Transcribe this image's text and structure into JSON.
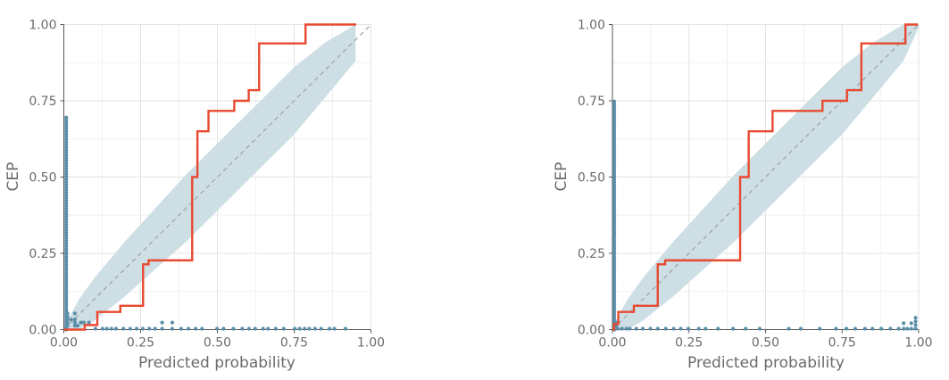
{
  "chart_data": [
    {
      "type": "line",
      "title": "",
      "xlabel": "Predicted probability",
      "ylabel": "CEP",
      "xlim": [
        0,
        1
      ],
      "ylim": [
        0,
        1
      ],
      "xticks": [
        "0.00",
        "0.25",
        "0.50",
        "0.75",
        "1.00"
      ],
      "yticks": [
        "0.00",
        "0.25",
        "0.50",
        "0.75",
        "1.00"
      ],
      "grid": true,
      "colors": {
        "step": "#e8492f",
        "band": "#cddfe5",
        "points": "#5a8ea8",
        "diagonal": "#a0a0a0"
      },
      "cep_step": {
        "x": [
          0,
          0.068,
          0.109,
          0.184,
          0.258,
          0.276,
          0.418,
          0.435,
          0.471,
          0.555,
          0.602,
          0.636,
          0.787,
          0.952
        ],
        "y": [
          0,
          0.015,
          0.058,
          0.078,
          0.214,
          0.227,
          0.5,
          0.65,
          0.717,
          0.75,
          0.785,
          0.938,
          1.0,
          1.0
        ]
      },
      "band": {
        "x": [
          0,
          0.05,
          0.1,
          0.15,
          0.2,
          0.25,
          0.3,
          0.35,
          0.4,
          0.45,
          0.5,
          0.55,
          0.6,
          0.65,
          0.7,
          0.75,
          0.8,
          0.85,
          0.9,
          0.95
        ],
        "lower": [
          0,
          0,
          0.03,
          0.07,
          0.11,
          0.155,
          0.2,
          0.245,
          0.29,
          0.34,
          0.39,
          0.44,
          0.49,
          0.54,
          0.59,
          0.64,
          0.7,
          0.76,
          0.82,
          0.88
        ],
        "upper": [
          0.01,
          0.1,
          0.17,
          0.23,
          0.29,
          0.345,
          0.4,
          0.455,
          0.51,
          0.56,
          0.61,
          0.66,
          0.71,
          0.76,
          0.81,
          0.86,
          0.9,
          0.94,
          0.97,
          1.0
        ]
      },
      "points_column": {
        "x": 0.005,
        "y_max": 0.7
      },
      "points": {
        "x": [
          0.012,
          0.012,
          0.012,
          0.012,
          0.012,
          0.036,
          0.036,
          0.036,
          0.036,
          0.024,
          0.045,
          0.055,
          0.065,
          0.082,
          0.103,
          0.126,
          0.14,
          0.155,
          0.17,
          0.194,
          0.216,
          0.237,
          0.257,
          0.278,
          0.297,
          0.32,
          0.32,
          0.353,
          0.353,
          0.382,
          0.406,
          0.429,
          0.45,
          0.499,
          0.52,
          0.552,
          0.581,
          0.603,
          0.623,
          0.649,
          0.665,
          0.69,
          0.716,
          0.752,
          0.768,
          0.784,
          0.799,
          0.818,
          0.838,
          0.865,
          0.881,
          0.917
        ],
        "y": [
          0.01,
          0.02,
          0.03,
          0.04,
          0.05,
          0.01,
          0.02,
          0.03,
          0.05,
          0.03,
          0.01,
          0.02,
          0.02,
          0.02,
          0.0,
          0.0,
          0.0,
          0.0,
          0.0,
          0.0,
          0.0,
          0.0,
          0.0,
          0.0,
          0.0,
          0.0,
          0.02,
          0.0,
          0.02,
          0.0,
          0.0,
          0.0,
          0.0,
          0.0,
          0.0,
          0.0,
          0.0,
          0.0,
          0.0,
          0.0,
          0.0,
          0.0,
          0.0,
          0.0,
          0.0,
          0.0,
          0.0,
          0.0,
          0.0,
          0.0,
          0.0,
          0.0
        ]
      }
    },
    {
      "type": "line",
      "title": "",
      "xlabel": "Predicted probability",
      "ylabel": "CEP",
      "xlim": [
        0,
        1
      ],
      "ylim": [
        0,
        1
      ],
      "xticks": [
        "0.00",
        "0.25",
        "0.50",
        "0.75",
        "1.00"
      ],
      "yticks": [
        "0.00",
        "0.25",
        "0.50",
        "0.75",
        "1.00"
      ],
      "grid": true,
      "colors": {
        "step": "#e8492f",
        "band": "#cddfe5",
        "points": "#5a8ea8",
        "diagonal": "#a0a0a0"
      },
      "cep_step": {
        "x": [
          0,
          0.005,
          0.019,
          0.07,
          0.148,
          0.172,
          0.417,
          0.445,
          0.523,
          0.686,
          0.766,
          0.813,
          0.957,
          0.998
        ],
        "y": [
          0,
          0.018,
          0.058,
          0.078,
          0.214,
          0.227,
          0.5,
          0.65,
          0.717,
          0.75,
          0.785,
          0.938,
          1.0,
          1.0
        ]
      },
      "band": {
        "x": [
          0,
          0.05,
          0.1,
          0.15,
          0.2,
          0.25,
          0.3,
          0.35,
          0.4,
          0.45,
          0.5,
          0.55,
          0.6,
          0.65,
          0.7,
          0.75,
          0.8,
          0.85,
          0.9,
          0.95,
          1.0
        ],
        "lower": [
          0,
          0,
          0.03,
          0.07,
          0.11,
          0.155,
          0.2,
          0.245,
          0.29,
          0.34,
          0.39,
          0.44,
          0.49,
          0.54,
          0.59,
          0.64,
          0.7,
          0.76,
          0.82,
          0.88,
          0.99
        ],
        "upper": [
          0.01,
          0.1,
          0.17,
          0.23,
          0.29,
          0.345,
          0.4,
          0.455,
          0.51,
          0.56,
          0.61,
          0.66,
          0.71,
          0.76,
          0.81,
          0.86,
          0.9,
          0.94,
          0.97,
          1.0,
          1.0
        ]
      },
      "points_column": {
        "x": 0.003,
        "y_max": 0.75
      },
      "points": {
        "x": [
          0.012,
          0.012,
          0.017,
          0.031,
          0.046,
          0.057,
          0.078,
          0.099,
          0.124,
          0.148,
          0.174,
          0.2,
          0.223,
          0.248,
          0.282,
          0.304,
          0.345,
          0.394,
          0.435,
          0.481,
          0.576,
          0.615,
          0.677,
          0.73,
          0.764,
          0.793,
          0.825,
          0.849,
          0.878,
          0.908,
          0.935,
          0.951,
          0.951,
          0.963,
          0.976,
          0.976,
          0.99,
          0.99,
          0.99,
          0.99
        ],
        "y": [
          0.01,
          0.02,
          0.0,
          0.0,
          0.0,
          0.0,
          0.0,
          0.0,
          0.0,
          0.0,
          0.0,
          0.0,
          0.0,
          0.0,
          0.0,
          0.0,
          0.0,
          0.0,
          0.0,
          0.0,
          0.0,
          0.0,
          0.0,
          0.0,
          0.0,
          0.0,
          0.0,
          0.0,
          0.0,
          0.0,
          0.0,
          0.0,
          0.018,
          0.0,
          0.0,
          0.018,
          0.0,
          0.012,
          0.024,
          0.036
        ]
      }
    }
  ]
}
